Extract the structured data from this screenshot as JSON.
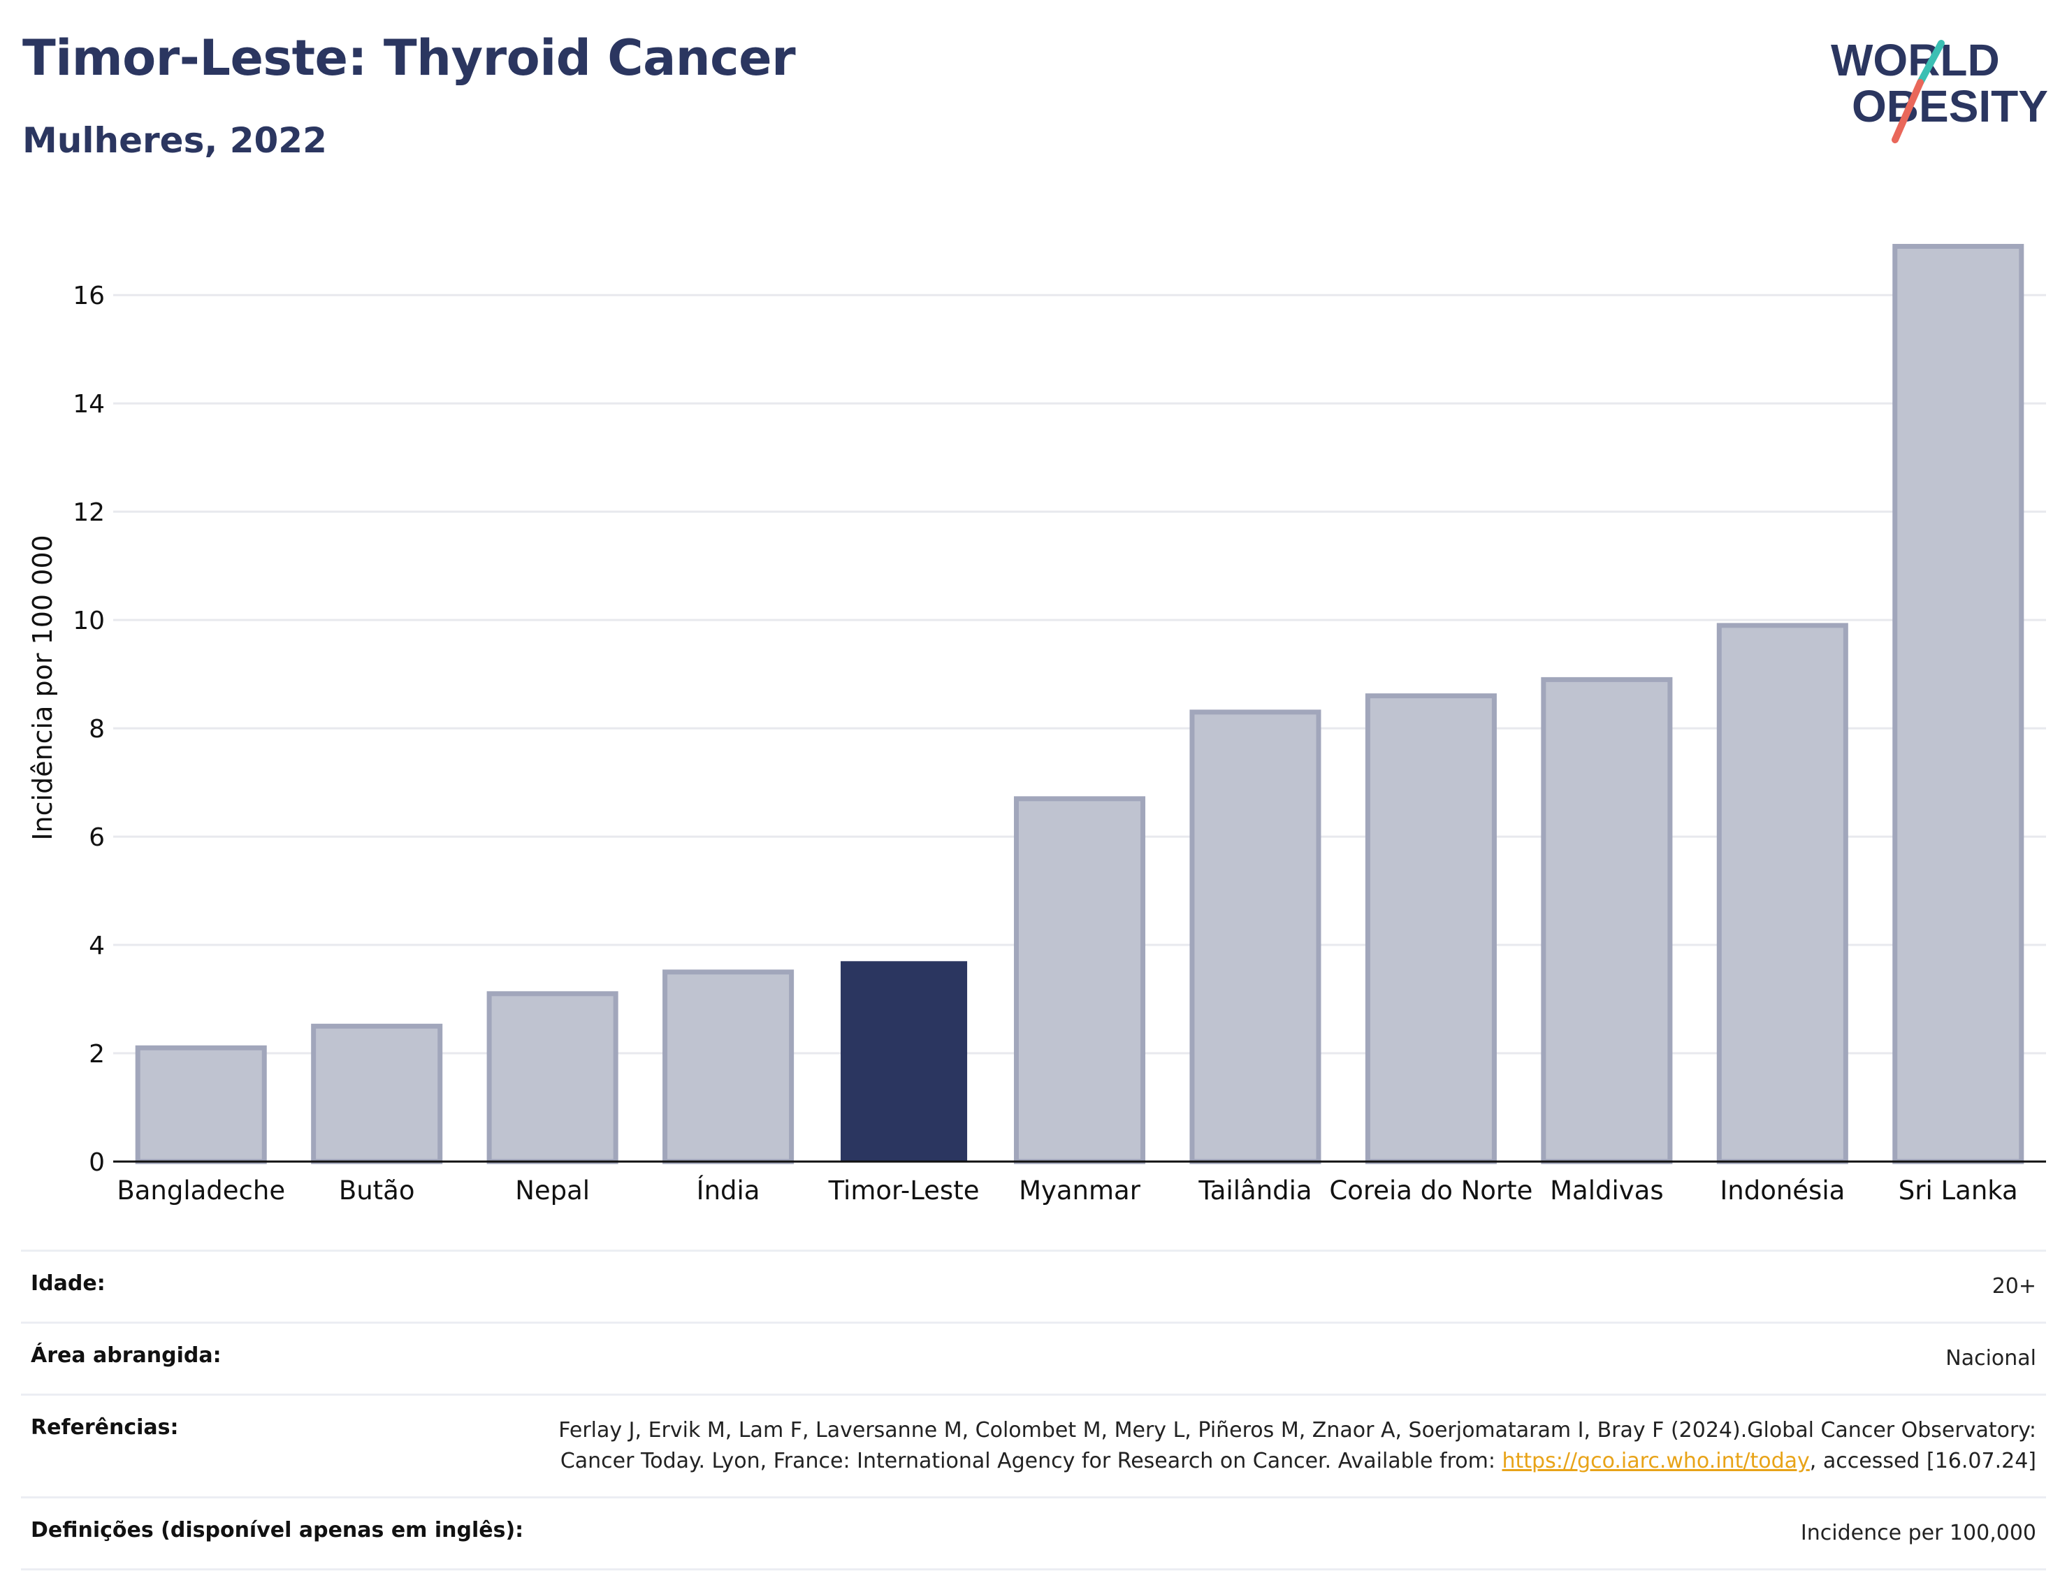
{
  "header": {
    "title": "Timor-Leste: Thyroid Cancer",
    "subtitle": "Mulheres, 2022"
  },
  "logo": {
    "line1": "WORLD",
    "line2": "OBESITY",
    "colors": {
      "text": "#2b3660",
      "slash_top": "#3bbfb3",
      "slash_bottom": "#e9675a"
    }
  },
  "chart_data": {
    "type": "bar",
    "categories": [
      "Bangladeche",
      "Butão",
      "Nepal",
      "Índia",
      "Timor-Leste",
      "Myanmar",
      "Tailândia",
      "Coreia do Norte",
      "Maldivas",
      "Indonésia",
      "Sri Lanka"
    ],
    "values": [
      2.1,
      2.5,
      3.1,
      3.5,
      3.7,
      6.7,
      8.3,
      8.6,
      8.9,
      9.9,
      16.9
    ],
    "highlight": "Timor-Leste",
    "xlabel": "",
    "ylabel": "Incidência por 100 000",
    "ylim": [
      0,
      17.5
    ],
    "yticks": [
      0,
      2,
      4,
      6,
      8,
      10,
      12,
      14,
      16
    ],
    "grid": true,
    "colors": {
      "bar": "#bfc3d0",
      "bar_border": "#a1a6bb",
      "highlight": "#2b3660",
      "grid": "#e8e9ee",
      "axis": "#111111"
    }
  },
  "meta": {
    "rows": [
      {
        "label": "Idade:",
        "value": "20+"
      },
      {
        "label": "Área abrangida:",
        "value": "Nacional"
      },
      {
        "label": "Referências:",
        "value_pre": "Ferlay J, Ervik M, Lam F, Laversanne M, Colombet M, Mery L, Piñeros M, Znaor A, Soerjomataram I, Bray F (2024).Global Cancer Observatory: Cancer Today. Lyon, France: International Agency for Research on Cancer. Available from: ",
        "link": "https://gco.iarc.who.int/today",
        "value_post": ", accessed [16.07.24]"
      },
      {
        "label": "Definições (disponível apenas em inglês):",
        "value": "Incidence per 100,000"
      }
    ]
  }
}
